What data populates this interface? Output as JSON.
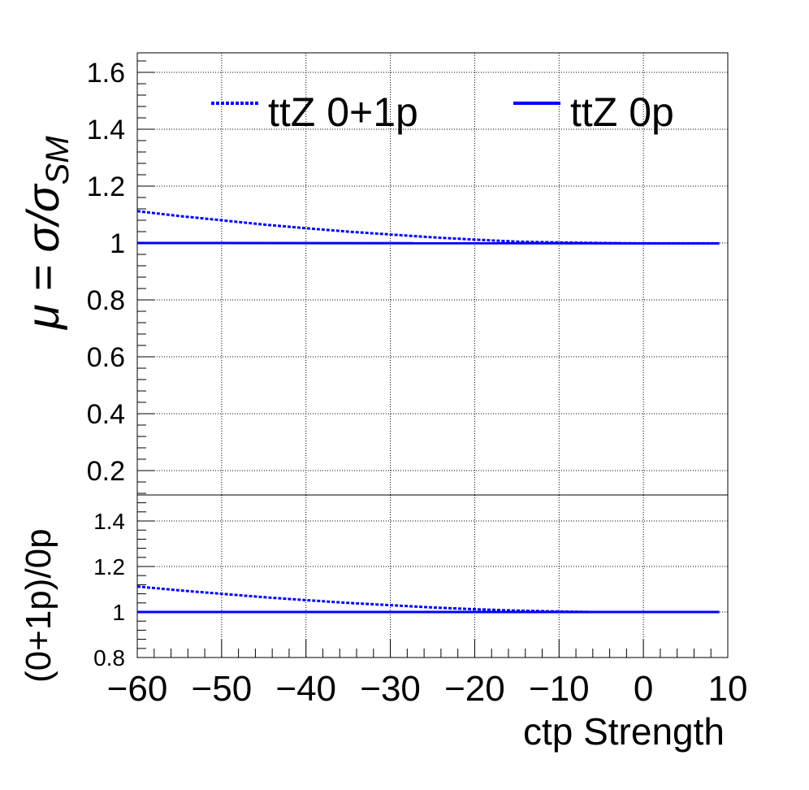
{
  "chart_data": [
    {
      "type": "line",
      "panel": "main",
      "ylabel": "μ = σ/σ",
      "ylabel_sub": "SM",
      "xlim": [
        -60,
        10
      ],
      "ylim": [
        0.1,
        1.67
      ],
      "grid": true,
      "yticks": [
        0.2,
        0.4,
        0.6,
        0.8,
        1,
        1.2,
        1.4,
        1.6
      ],
      "ytick_labels": [
        "0.2",
        "0.4",
        "0.6",
        "0.8",
        "1",
        "1.2",
        "1.4",
        "1.6"
      ],
      "legend": {
        "placement": "top",
        "entries": [
          {
            "label": "ttZ 0+1p",
            "style": "dotted"
          },
          {
            "label": "ttZ 0p",
            "style": "solid"
          }
        ]
      },
      "series": [
        {
          "name": "ttZ 0+1p",
          "color": "#0000ff",
          "style": "dotted",
          "x": [
            -60,
            -55,
            -50,
            -45,
            -40,
            -35,
            -30,
            -25,
            -20,
            -15,
            -10,
            -5,
            0,
            5,
            9
          ],
          "y": [
            1.112,
            1.095,
            1.08,
            1.065,
            1.052,
            1.04,
            1.03,
            1.02,
            1.012,
            1.005,
            1.002,
            1.0,
            0.999,
            0.999,
            0.999
          ]
        },
        {
          "name": "ttZ 0p",
          "color": "#0000ff",
          "style": "solid",
          "x": [
            -60,
            9
          ],
          "y": [
            1.0,
            0.999
          ]
        }
      ]
    },
    {
      "type": "line",
      "panel": "ratio",
      "ylabel": "(0+1p)/0p",
      "xlabel": "ctp Strength",
      "xlim": [
        -60,
        10
      ],
      "ylim": [
        0.8,
        1.52
      ],
      "grid": true,
      "yticks": [
        0.8,
        1,
        1.2,
        1.4
      ],
      "ytick_labels": [
        "0.8",
        "1",
        "1.2",
        "1.4"
      ],
      "xticks": [
        -60,
        -50,
        -40,
        -30,
        -20,
        -10,
        0,
        10
      ],
      "xtick_labels": [
        "−60",
        "−50",
        "−40",
        "−30",
        "−20",
        "−10",
        "0",
        "10"
      ],
      "series": [
        {
          "color": "#0000ff",
          "style": "dotted",
          "x": [
            -60,
            -55,
            -50,
            -45,
            -40,
            -35,
            -30,
            -25,
            -20,
            -15,
            -10,
            -6
          ],
          "y": [
            1.112,
            1.095,
            1.08,
            1.065,
            1.052,
            1.04,
            1.03,
            1.02,
            1.012,
            1.006,
            1.002,
            1.0
          ]
        },
        {
          "color": "#0000ff",
          "style": "solid",
          "x": [
            -60,
            9
          ],
          "y": [
            1.0,
            1.0
          ]
        }
      ]
    }
  ]
}
